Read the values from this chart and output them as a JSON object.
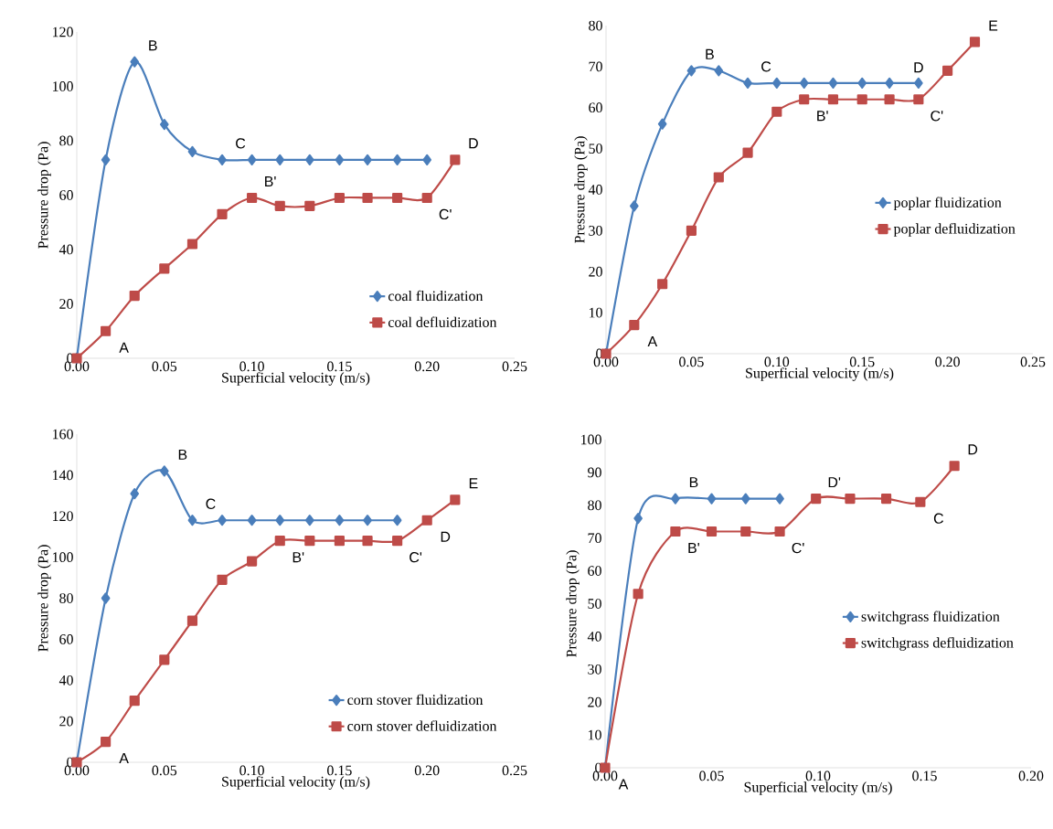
{
  "chart_data": [
    {
      "type": "line",
      "xlabel": "Superficial velocity (m/s)",
      "ylabel": "Pressure drop (Pa)",
      "xlim": [
        0,
        0.25
      ],
      "xticks": [
        {
          "value": 0,
          "label": "0.00"
        },
        0.05,
        {
          "value": 0.1,
          "label": "0.10"
        },
        0.15,
        {
          "value": 0.2,
          "label": "0.20"
        },
        0.25
      ],
      "ylim": [
        0,
        120
      ],
      "yticks": [
        0,
        20,
        40,
        60,
        80,
        100,
        120
      ],
      "grid": false,
      "legend": "bottom right",
      "line_style": "solid",
      "series": [
        {
          "name": "coal fluidization",
          "color": "#4a7ebb",
          "marker": "diamond",
          "x": [
            0,
            0.0165,
            0.033,
            0.05,
            0.066,
            0.083,
            0.1,
            0.116,
            0.133,
            0.15,
            0.166,
            0.183,
            0.2
          ],
          "values": [
            0,
            73,
            109,
            86,
            76,
            73,
            73,
            73,
            73,
            73,
            73,
            73,
            73
          ]
        },
        {
          "name": "coal defluidization",
          "color": "#be4b48",
          "marker": "square",
          "x": [
            0,
            0.0165,
            0.033,
            0.05,
            0.066,
            0.083,
            0.1,
            0.116,
            0.133,
            0.15,
            0.166,
            0.183,
            0.2,
            0.216
          ],
          "values": [
            0,
            10,
            23,
            33,
            42,
            53,
            59,
            56,
            56,
            59,
            59,
            59,
            59,
            73
          ]
        }
      ],
      "annotations": [
        {
          "text": "A",
          "x": 0.0165,
          "y": 10
        },
        {
          "text": "B",
          "x": 0.033,
          "y": 109
        },
        {
          "text": "C",
          "x": 0.083,
          "y": 73
        },
        {
          "text": "D",
          "x": 0.216,
          "y": 73
        },
        {
          "text": "B'",
          "x": 0.1,
          "y": 59
        },
        {
          "text": "C'",
          "x": 0.2,
          "y": 59
        }
      ]
    },
    {
      "type": "line",
      "xlabel": "Superficial velocity (m/s)",
      "ylabel": "Pressure drop (Pa)",
      "xlim": [
        0,
        0.25
      ],
      "xticks": [
        {
          "value": 0,
          "label": "0.00"
        },
        0.05,
        {
          "value": 0.1,
          "label": "0.10"
        },
        0.15,
        {
          "value": 0.2,
          "label": "0.20"
        },
        0.25
      ],
      "ylim": [
        0,
        80
      ],
      "yticks": [
        0,
        10,
        20,
        30,
        40,
        50,
        60,
        70,
        80
      ],
      "grid": false,
      "legend": "right",
      "line_style": "solid",
      "series": [
        {
          "name": "poplar fluidization",
          "color": "#4a7ebb",
          "marker": "diamond",
          "x": [
            0,
            0.0165,
            0.033,
            0.05,
            0.066,
            0.083,
            0.1,
            0.116,
            0.133,
            0.15,
            0.166,
            0.183
          ],
          "values": [
            0,
            36,
            56,
            69,
            69,
            66,
            66,
            66,
            66,
            66,
            66,
            66
          ]
        },
        {
          "name": "poplar defluidization",
          "color": "#be4b48",
          "marker": "square",
          "x": [
            0,
            0.0165,
            0.033,
            0.05,
            0.066,
            0.083,
            0.1,
            0.116,
            0.133,
            0.15,
            0.166,
            0.183,
            0.2,
            0.216
          ],
          "values": [
            0,
            7,
            17,
            30,
            43,
            49,
            59,
            62,
            62,
            62,
            62,
            62,
            69,
            76
          ]
        }
      ],
      "annotations": [
        {
          "text": "A",
          "x": 0.0165,
          "y": 7
        },
        {
          "text": "B",
          "x": 0.05,
          "y": 69
        },
        {
          "text": "C",
          "x": 0.083,
          "y": 66
        },
        {
          "text": "D",
          "x": 0.183,
          "y": 66
        },
        {
          "text": "E",
          "x": 0.216,
          "y": 76
        },
        {
          "text": "B'",
          "x": 0.116,
          "y": 62
        },
        {
          "text": "C'",
          "x": 0.183,
          "y": 62
        }
      ]
    },
    {
      "type": "line",
      "xlabel": "Superficial velocity (m/s)",
      "ylabel": "Pressure drop (Pa)",
      "xlim": [
        0,
        0.25
      ],
      "xticks": [
        {
          "value": 0,
          "label": "0.00"
        },
        0.05,
        {
          "value": 0.1,
          "label": "0.10"
        },
        0.15,
        {
          "value": 0.2,
          "label": "0.20"
        },
        0.25
      ],
      "ylim": [
        0,
        160
      ],
      "yticks": [
        0,
        20,
        40,
        60,
        80,
        100,
        120,
        140,
        160
      ],
      "grid": false,
      "legend": "bottom right",
      "line_style": "solid",
      "series": [
        {
          "name": "corn stover fluidization",
          "color": "#4a7ebb",
          "marker": "diamond",
          "x": [
            0,
            0.0165,
            0.033,
            0.05,
            0.066,
            0.083,
            0.1,
            0.116,
            0.133,
            0.15,
            0.166,
            0.183
          ],
          "values": [
            0,
            80,
            131,
            142,
            118,
            118,
            118,
            118,
            118,
            118,
            118,
            118
          ]
        },
        {
          "name": "corn stover defluidization",
          "color": "#be4b48",
          "marker": "square",
          "x": [
            0,
            0.0165,
            0.033,
            0.05,
            0.066,
            0.083,
            0.1,
            0.116,
            0.133,
            0.15,
            0.166,
            0.183,
            0.2,
            0.216
          ],
          "values": [
            0,
            10,
            30,
            50,
            69,
            89,
            98,
            108,
            108,
            108,
            108,
            108,
            118,
            128
          ]
        }
      ],
      "annotations": [
        {
          "text": "A",
          "x": 0.0165,
          "y": 10
        },
        {
          "text": "B",
          "x": 0.05,
          "y": 142
        },
        {
          "text": "C",
          "x": 0.066,
          "y": 118
        },
        {
          "text": "D",
          "x": 0.2,
          "y": 118
        },
        {
          "text": "E",
          "x": 0.216,
          "y": 128
        },
        {
          "text": "B'",
          "x": 0.116,
          "y": 108
        },
        {
          "text": "C'",
          "x": 0.183,
          "y": 108
        }
      ]
    },
    {
      "type": "line",
      "xlabel": "Superficial velocity (m/s)",
      "ylabel": "Pressure drop (Pa)",
      "xlim": [
        0,
        0.2
      ],
      "xticks": [
        {
          "value": 0,
          "label": "0.00"
        },
        0.05,
        {
          "value": 0.1,
          "label": "0.10"
        },
        0.15,
        {
          "value": 0.2,
          "label": "0.20"
        }
      ],
      "ylim": [
        0,
        100
      ],
      "yticks": [
        0,
        10,
        20,
        30,
        40,
        50,
        60,
        70,
        80,
        90,
        100
      ],
      "grid": false,
      "legend": "right",
      "line_style": "solid",
      "series": [
        {
          "name": "switchgrass fluidization",
          "color": "#4a7ebb",
          "marker": "diamond",
          "x": [
            0,
            0.0155,
            0.033,
            0.05,
            0.066,
            0.082
          ],
          "values": [
            0,
            76,
            82,
            82,
            82,
            82
          ]
        },
        {
          "name": "switchgrass defluidization",
          "color": "#be4b48",
          "marker": "square",
          "x": [
            0,
            0.0155,
            0.033,
            0.05,
            0.066,
            0.082,
            0.099,
            0.115,
            0.132,
            0.148,
            0.164
          ],
          "values": [
            0,
            53,
            72,
            72,
            72,
            72,
            82,
            82,
            82,
            81,
            92
          ]
        }
      ],
      "annotations": [
        {
          "text": "A",
          "x": 0,
          "y": 0
        },
        {
          "text": "B",
          "x": 0.033,
          "y": 82
        },
        {
          "text": "C",
          "x": 0.148,
          "y": 81
        },
        {
          "text": "D",
          "x": 0.164,
          "y": 92
        },
        {
          "text": "B'",
          "x": 0.033,
          "y": 72
        },
        {
          "text": "C'",
          "x": 0.082,
          "y": 72
        },
        {
          "text": "D'",
          "x": 0.099,
          "y": 82
        }
      ]
    }
  ]
}
